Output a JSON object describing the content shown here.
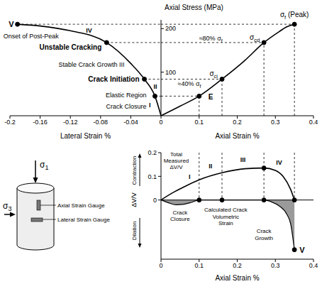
{
  "chart_data": [
    {
      "type": "line",
      "xlabel": "Lateral Strain %",
      "xlim": [
        -0.2,
        0
      ],
      "xticks": [
        -0.2,
        -0.16,
        -0.12,
        -0.08,
        -0.04,
        0
      ],
      "ylim": [
        0,
        220
      ],
      "tick_labels": "x",
      "x": [
        -0.19,
        -0.16,
        -0.12,
        -0.072,
        -0.04,
        -0.022,
        -0.008,
        0
      ],
      "values": [
        210,
        206,
        195,
        168,
        120,
        84,
        45,
        0
      ],
      "color": "#000000",
      "points": [
        {
          "x": -0.19,
          "y": 210,
          "label": "V"
        },
        {
          "x": -0.072,
          "y": 168,
          "label": "Unstable Cracking"
        },
        {
          "x": -0.022,
          "y": 84,
          "label": "Crack Initiation"
        },
        {
          "x": -0.008,
          "y": 45
        }
      ],
      "annotations": [
        "Onset of Post-Peak",
        "IV",
        "Stable Crack Growth III",
        "II",
        "Elastic Region",
        "I",
        "Crack Closure"
      ]
    },
    {
      "type": "line",
      "ylabel": "Axial Stress (MPa)",
      "xlabel": "Axial Strain %",
      "xlim": [
        0,
        0.4
      ],
      "xticks": [
        0.1,
        0.2,
        0.3,
        0.4
      ],
      "ylim": [
        0,
        220
      ],
      "yticks": [
        100,
        200
      ],
      "x": [
        0,
        0.05,
        0.1,
        0.16,
        0.22,
        0.27,
        0.31,
        0.33,
        0.35
      ],
      "values": [
        0,
        22,
        45,
        84,
        127,
        168,
        193,
        204,
        210
      ],
      "color": "#000000",
      "points": [
        {
          "x": 0.1,
          "y": 45
        },
        {
          "x": 0.16,
          "y": 84,
          "label": "σci"
        },
        {
          "x": 0.27,
          "y": 168,
          "label": "σcd"
        },
        {
          "x": 0.35,
          "y": 210,
          "label": "σf (Peak)"
        }
      ],
      "annotations": [
        "E",
        "≈80% σf",
        "≈40% σf"
      ]
    },
    {
      "type": "line",
      "xlabel": "Axial Strain %",
      "ylabel": "ΔV/V",
      "xlim": [
        0,
        0.4
      ],
      "xticks": [
        0,
        0.1,
        0.2,
        0.3,
        0.4
      ],
      "ylim": [
        -0.25,
        0.2
      ],
      "yticks": [
        0,
        0.1,
        0.2
      ],
      "series": [
        {
          "name": "Total Measured ΔV/V",
          "type": "line",
          "color": "#000000",
          "x": [
            0,
            0.03,
            0.06,
            0.1,
            0.16,
            0.22,
            0.27,
            0.3,
            0.32,
            0.34,
            0.35
          ],
          "values": [
            0,
            0.03,
            0.055,
            0.085,
            0.115,
            0.132,
            0.135,
            0.125,
            0.1,
            0.045,
            0
          ]
        },
        {
          "name": "Calculated Crack Volumetric Strain",
          "type": "area",
          "color": "#9a9a9a",
          "x": [
            0,
            0.02,
            0.04,
            0.06,
            0.08,
            0.1,
            0.16,
            0.27,
            0.29,
            0.31,
            0.33,
            0.34,
            0.35
          ],
          "values": [
            0,
            -0.012,
            -0.02,
            -0.018,
            -0.01,
            0,
            0,
            0,
            -0.008,
            -0.025,
            -0.06,
            -0.1,
            -0.21
          ]
        }
      ],
      "points": [
        {
          "x": 0.1,
          "y": 0
        },
        {
          "x": 0.16,
          "y": 0
        },
        {
          "x": 0.27,
          "y": 0
        },
        {
          "x": 0.27,
          "y": 0.135
        },
        {
          "x": 0.35,
          "y": 0
        },
        {
          "x": 0.35,
          "y": -0.21,
          "label": "V"
        }
      ],
      "annotations": [
        "Contraction",
        "Dilation",
        "I",
        "II",
        "III",
        "IV",
        "Crack Closure",
        "Crack Growth"
      ]
    }
  ],
  "specimen": {
    "axial_stress": "σ1",
    "lateral_stress": "σ3",
    "gauges": [
      "Axial Strain Gauge",
      "Lateral Strain Gauge"
    ]
  }
}
